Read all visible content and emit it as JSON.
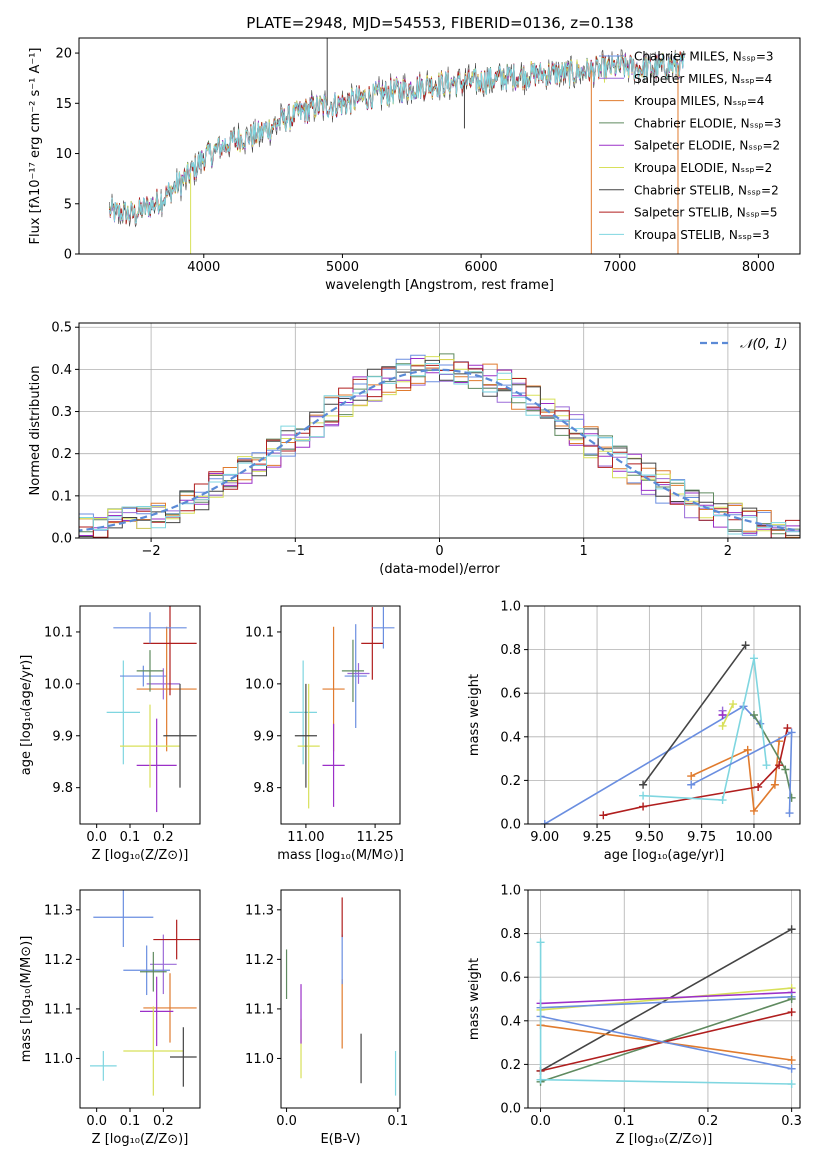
{
  "figure": {
    "title": "PLATE=2948, MJD=54553, FIBERID=0136, z=0.138"
  },
  "series_styles": [
    {
      "name": "Chabrier MILES",
      "nssp": 3,
      "color": "#6a8ee0"
    },
    {
      "name": "Salpeter MILES",
      "nssp": 4,
      "color": "#9b6bd8"
    },
    {
      "name": "Kroupa MILES",
      "nssp": 4,
      "color": "#e07b2e"
    },
    {
      "name": "Chabrier ELODIE",
      "nssp": 3,
      "color": "#5f8a5f"
    },
    {
      "name": "Salpeter ELODIE",
      "nssp": 2,
      "color": "#9b30c8"
    },
    {
      "name": "Kroupa ELODIE",
      "nssp": 2,
      "color": "#d8e05a"
    },
    {
      "name": "Chabrier STELIB",
      "nssp": 2,
      "color": "#444444"
    },
    {
      "name": "Salpeter STELIB",
      "nssp": 5,
      "color": "#b01e1e"
    },
    {
      "name": "Kroupa STELIB",
      "nssp": 3,
      "color": "#7fd6e0"
    }
  ],
  "chart_data": [
    {
      "id": "spectrum",
      "type": "line",
      "xlabel": "wavelength [Angstrom, rest frame]",
      "ylabel": "Flux [fλ10⁻¹⁷ erg cm⁻² s⁻¹ A⁻¹]",
      "xlim": [
        3100,
        8300
      ],
      "ylim": [
        0,
        21.5
      ],
      "xticks": [
        4000,
        5000,
        6000,
        7000,
        8000
      ],
      "yticks": [
        0,
        5,
        10,
        15,
        20
      ],
      "legend_position": "top-right",
      "legend": [
        "Chabrier MILES, N_SSP=3",
        "Salpeter MILES, N_SSP=4",
        "Kroupa MILES, N_SSP=4",
        "Chabrier ELODIE, N_SSP=3",
        "Salpeter ELODIE, N_SSP=2",
        "Kroupa ELODIE, N_SSP=2",
        "Chabrier STELIB, N_SSP=2",
        "Salpeter STELIB, N_SSP=5",
        "Kroupa STELIB, N_SSP=3"
      ],
      "continuum": {
        "x": [
          3320,
          3500,
          3700,
          3900,
          4000,
          4200,
          4400,
          4600,
          4800,
          5000,
          5200,
          5400,
          5600,
          5800,
          6000,
          6200,
          6400,
          6600,
          6800,
          7000,
          7200,
          7400,
          7600,
          7800,
          8000,
          8200
        ],
        "y": [
          4.2,
          4.0,
          5.5,
          8.0,
          9.6,
          11.2,
          12.0,
          13.5,
          14.6,
          15.0,
          15.7,
          16.3,
          16.8,
          17.0,
          17.2,
          17.6,
          17.9,
          18.0,
          18.3,
          18.6,
          18.5,
          18.8,
          19.0,
          19.1,
          19.3,
          19.5
        ]
      },
      "spikes": [
        {
          "x": 3905,
          "y": 0
        },
        {
          "x": 4890,
          "y": 21.5
        },
        {
          "x": 5880,
          "y": 12.5
        },
        {
          "x": 6795,
          "y": 0
        },
        {
          "x": 7420,
          "y": 0
        }
      ]
    },
    {
      "id": "residual_hist",
      "type": "step-histogram",
      "xlabel": "(data-model)/error",
      "ylabel": "Normed distribution",
      "xlim": [
        -2.5,
        2.5
      ],
      "ylim": [
        0,
        0.51
      ],
      "xticks": [
        -2,
        -1,
        0,
        1,
        2
      ],
      "yticks": [
        0.0,
        0.1,
        0.2,
        0.3,
        0.4,
        0.5
      ],
      "grid": true,
      "legend_position": "top-right",
      "reference": {
        "label": "𝒩(0, 1)",
        "mean": 0,
        "sigma": 1,
        "style": "dashed",
        "color": "#5b8ad6"
      },
      "bin_width": 0.1
    },
    {
      "id": "age_vs_Z",
      "type": "errorbar",
      "xlabel": "Z [log₁₀(Z/Z⊙)]",
      "ylabel": "age  [log₁₀(age/yr)]",
      "xlim": [
        -0.05,
        0.31
      ],
      "ylim": [
        9.73,
        10.15
      ],
      "xticks": [
        0.0,
        0.1,
        0.2
      ],
      "yticks": [
        9.8,
        9.9,
        10.0,
        10.1
      ],
      "points": [
        {
          "x": 0.08,
          "y": 9.945,
          "xerr": 0.05,
          "yerr": 0.1,
          "c": 8
        },
        {
          "x": 0.14,
          "y": 10.015,
          "xerr": 0.07,
          "yerr": 0.02,
          "c": 0
        },
        {
          "x": 0.2,
          "y": 10.0,
          "xerr": 0.05,
          "yerr": 0.03,
          "c": 1
        },
        {
          "x": 0.21,
          "y": 9.99,
          "xerr": 0.09,
          "yerr": 0.12,
          "c": 2
        },
        {
          "x": 0.16,
          "y": 10.025,
          "xerr": 0.04,
          "yerr": 0.04,
          "c": 3
        },
        {
          "x": 0.18,
          "y": 9.843,
          "xerr": 0.06,
          "yerr": 0.09,
          "c": 4
        },
        {
          "x": 0.16,
          "y": 9.88,
          "xerr": 0.09,
          "yerr": 0.08,
          "c": 5
        },
        {
          "x": 0.25,
          "y": 9.9,
          "xerr": 0.05,
          "yerr": 0.1,
          "c": 6
        },
        {
          "x": 0.22,
          "y": 10.078,
          "xerr": 0.08,
          "yerr": 0.1,
          "c": 7
        },
        {
          "x": 0.16,
          "y": 10.108,
          "xerr": 0.11,
          "yerr": 0.03,
          "c": 0
        }
      ]
    },
    {
      "id": "age_vs_mass",
      "type": "errorbar",
      "xlabel": "mass [log₁₀(M/M⊙)]",
      "xlim": [
        10.91,
        11.34
      ],
      "ylim": [
        9.73,
        10.15
      ],
      "xticks": [
        11.0,
        11.25
      ],
      "yticks": [
        9.8,
        9.9,
        10.0,
        10.1
      ],
      "points": [
        {
          "x": 10.99,
          "y": 9.945,
          "xerr": 0.05,
          "yerr": 0.1,
          "c": 8
        },
        {
          "x": 11.18,
          "y": 10.015,
          "xerr": 0.04,
          "yerr": 0.1,
          "c": 0
        },
        {
          "x": 11.19,
          "y": 10.02,
          "xerr": 0.04,
          "yerr": 0.02,
          "c": 1
        },
        {
          "x": 11.1,
          "y": 9.99,
          "xerr": 0.04,
          "yerr": 0.12,
          "c": 2
        },
        {
          "x": 11.17,
          "y": 10.025,
          "xerr": 0.04,
          "yerr": 0.06,
          "c": 3
        },
        {
          "x": 11.1,
          "y": 9.843,
          "xerr": 0.04,
          "yerr": 0.08,
          "c": 4
        },
        {
          "x": 11.01,
          "y": 9.88,
          "xerr": 0.04,
          "yerr": 0.12,
          "c": 5
        },
        {
          "x": 11.0,
          "y": 9.9,
          "xerr": 0.04,
          "yerr": 0.1,
          "c": 6
        },
        {
          "x": 11.24,
          "y": 10.078,
          "xerr": 0.04,
          "yerr": 0.07,
          "c": 7
        },
        {
          "x": 11.28,
          "y": 10.108,
          "xerr": 0.04,
          "yerr": 0.04,
          "c": 0
        }
      ]
    },
    {
      "id": "weight_vs_age",
      "type": "line",
      "xlabel": "age  [log₁₀(age/yr)]",
      "ylabel": "mass weight",
      "xlim": [
        8.92,
        10.22
      ],
      "ylim": [
        0,
        1.0
      ],
      "xticks": [
        9.0,
        9.25,
        9.5,
        9.75,
        10.0
      ],
      "yticks": [
        0.0,
        0.2,
        0.4,
        0.6,
        0.8,
        1.0
      ],
      "grid": true,
      "series": [
        {
          "c": 0,
          "x": [
            9.0,
            9.95,
            10.03
          ],
          "y": [
            0.0,
            0.54,
            0.46
          ]
        },
        {
          "c": 1,
          "x": [
            9.85,
            9.85
          ],
          "y": [
            0.5,
            0.52
          ]
        },
        {
          "c": 2,
          "x": [
            9.7,
            9.97,
            10.0,
            10.1,
            10.12
          ],
          "y": [
            0.22,
            0.34,
            0.06,
            0.18,
            0.38
          ]
        },
        {
          "c": 3,
          "x": [
            10.0,
            10.15,
            10.18
          ],
          "y": [
            0.5,
            0.25,
            0.12
          ]
        },
        {
          "c": 4,
          "x": [
            9.85
          ],
          "y": [
            0.5
          ]
        },
        {
          "c": 5,
          "x": [
            9.85,
            9.9
          ],
          "y": [
            0.45,
            0.55
          ]
        },
        {
          "c": 6,
          "x": [
            9.47,
            9.96
          ],
          "y": [
            0.18,
            0.82
          ]
        },
        {
          "c": 7,
          "x": [
            9.28,
            9.47,
            10.02,
            10.12,
            10.16
          ],
          "y": [
            0.04,
            0.08,
            0.17,
            0.27,
            0.44
          ]
        },
        {
          "c": 8,
          "x": [
            9.47,
            9.85,
            10.0,
            10.06
          ],
          "y": [
            0.13,
            0.11,
            0.76,
            0.27
          ]
        },
        {
          "c": 0,
          "x": [
            9.7,
            10.18,
            10.17
          ],
          "y": [
            0.18,
            0.42,
            0.05
          ]
        }
      ]
    },
    {
      "id": "mass_vs_Z",
      "type": "errorbar",
      "xlabel": "Z [log₁₀(Z/Z⊙)]",
      "ylabel": "mass [log₁₀(M/M⊙)]",
      "xlim": [
        -0.05,
        0.31
      ],
      "ylim": [
        10.9,
        11.34
      ],
      "xticks": [
        0.0,
        0.1,
        0.2
      ],
      "yticks": [
        11.0,
        11.1,
        11.2,
        11.3
      ],
      "points": [
        {
          "x": 0.02,
          "y": 10.985,
          "xerr": 0.04,
          "yerr": 0.03,
          "c": 8
        },
        {
          "x": 0.15,
          "y": 11.178,
          "xerr": 0.07,
          "yerr": 0.05,
          "c": 0
        },
        {
          "x": 0.2,
          "y": 11.19,
          "xerr": 0.04,
          "yerr": 0.06,
          "c": 1
        },
        {
          "x": 0.22,
          "y": 11.102,
          "xerr": 0.08,
          "yerr": 0.07,
          "c": 2
        },
        {
          "x": 0.17,
          "y": 11.175,
          "xerr": 0.04,
          "yerr": 0.04,
          "c": 3
        },
        {
          "x": 0.18,
          "y": 11.095,
          "xerr": 0.05,
          "yerr": 0.07,
          "c": 4
        },
        {
          "x": 0.17,
          "y": 11.015,
          "xerr": 0.09,
          "yerr": 0.09,
          "c": 5
        },
        {
          "x": 0.26,
          "y": 11.003,
          "xerr": 0.04,
          "yerr": 0.06,
          "c": 6
        },
        {
          "x": 0.24,
          "y": 11.24,
          "xerr": 0.07,
          "yerr": 0.04,
          "c": 7
        },
        {
          "x": 0.08,
          "y": 11.285,
          "xerr": 0.09,
          "yerr": 0.06,
          "c": 0
        }
      ]
    },
    {
      "id": "mass_vs_ebv",
      "type": "errorbar",
      "xlabel": "E(B-V)",
      "xlim": [
        -0.005,
        0.102
      ],
      "ylim": [
        10.9,
        11.34
      ],
      "xticks": [
        0,
        0.1
      ],
      "yticks": [
        11.0,
        11.1,
        11.2,
        11.3
      ],
      "points": [
        {
          "x": 0.0,
          "y": 11.17,
          "xerr": 0,
          "yerr": 0.05,
          "c": 3
        },
        {
          "x": 0.013,
          "y": 11.02,
          "xerr": 0,
          "yerr": 0.06,
          "c": 5
        },
        {
          "x": 0.013,
          "y": 11.09,
          "xerr": 0,
          "yerr": 0.06,
          "c": 4
        },
        {
          "x": 0.05,
          "y": 11.09,
          "xerr": 0,
          "yerr": 0.07,
          "c": 2
        },
        {
          "x": 0.05,
          "y": 11.2,
          "xerr": 0,
          "yerr": 0.05,
          "c": 0
        },
        {
          "x": 0.05,
          "y": 11.285,
          "xerr": 0,
          "yerr": 0.04,
          "c": 7
        },
        {
          "x": 0.067,
          "y": 11.0,
          "xerr": 0,
          "yerr": 0.05,
          "c": 6
        },
        {
          "x": 0.098,
          "y": 10.97,
          "xerr": 0,
          "yerr": 0.045,
          "c": 8
        }
      ]
    },
    {
      "id": "weight_vs_Z",
      "type": "line",
      "xlabel": "Z [log₁₀(Z/Z⊙)]",
      "ylabel": "mass weight",
      "xlim": [
        -0.015,
        0.31
      ],
      "ylim": [
        0,
        1.0
      ],
      "xticks": [
        0.0,
        0.1,
        0.2,
        0.3
      ],
      "yticks": [
        0.0,
        0.2,
        0.4,
        0.6,
        0.8,
        1.0
      ],
      "grid": true,
      "series": [
        {
          "c": 6,
          "x": [
            0.0,
            0.3
          ],
          "y": [
            0.17,
            0.82
          ]
        },
        {
          "c": 5,
          "x": [
            0.0,
            0.3
          ],
          "y": [
            0.45,
            0.55
          ]
        },
        {
          "c": 4,
          "x": [
            0.0,
            0.3
          ],
          "y": [
            0.48,
            0.53
          ]
        },
        {
          "c": 0,
          "x": [
            0.0,
            0.3
          ],
          "y": [
            0.46,
            0.51
          ]
        },
        {
          "c": 3,
          "x": [
            0.0,
            0.3
          ],
          "y": [
            0.12,
            0.5
          ]
        },
        {
          "c": 7,
          "x": [
            0.0,
            0.3
          ],
          "y": [
            0.17,
            0.44
          ]
        },
        {
          "c": 2,
          "x": [
            0.0,
            0.3
          ],
          "y": [
            0.38,
            0.22
          ]
        },
        {
          "c": 0,
          "x": [
            0.0,
            0.3
          ],
          "y": [
            0.42,
            0.18
          ]
        },
        {
          "c": 8,
          "x": [
            0.0,
            0.3
          ],
          "y": [
            0.13,
            0.11
          ]
        },
        {
          "c": 8,
          "x": [
            0.0,
            0.0
          ],
          "y": [
            0.13,
            0.76
          ]
        }
      ]
    }
  ]
}
